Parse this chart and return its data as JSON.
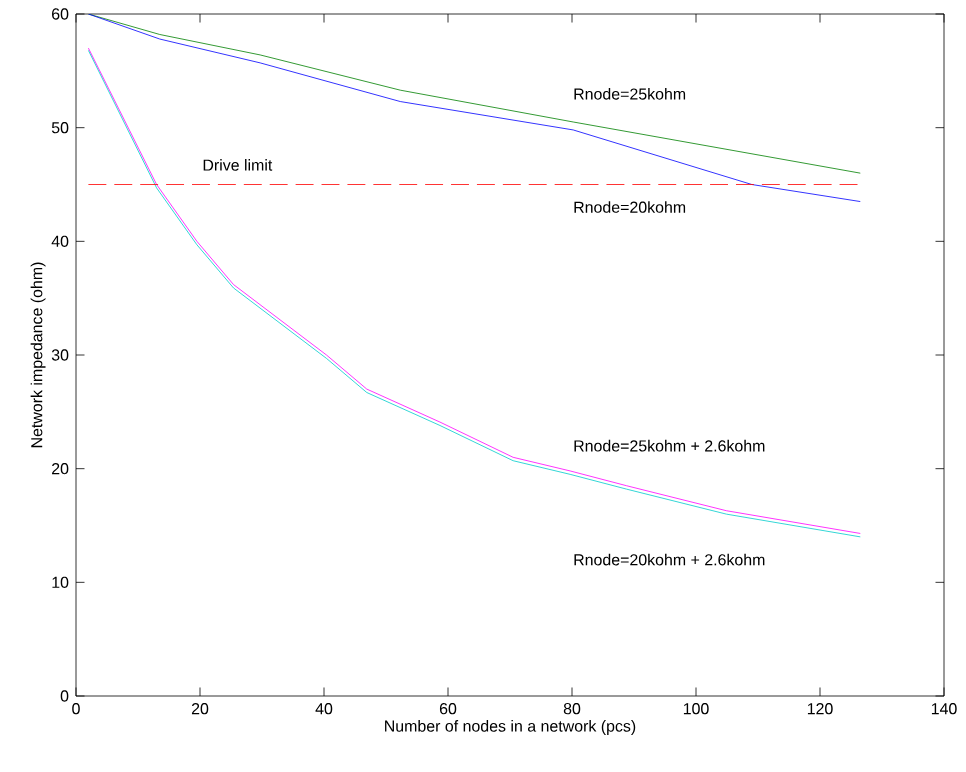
{
  "chart_data": {
    "type": "line",
    "xlabel": "Number of nodes in a network (pcs)",
    "ylabel": "Network impedance (ohm)",
    "xlim": [
      0,
      140
    ],
    "ylim": [
      0,
      60
    ],
    "xticks": [
      0,
      20,
      40,
      60,
      80,
      100,
      120,
      140
    ],
    "yticks": [
      0,
      10,
      20,
      30,
      40,
      50,
      60
    ],
    "grid": false,
    "marker": "none",
    "line_style": "solid",
    "series": [
      {
        "color": "#008000",
        "x": [
          2,
          13.5,
          29.7,
          52.3,
          80.2,
          126.5
        ],
        "values": [
          60,
          58.2,
          56.4,
          53.3,
          50.5,
          46.0
        ]
      },
      {
        "color": "#0000ff",
        "x": [
          2,
          13.5,
          29.7,
          52.3,
          80.2,
          109,
          126.5
        ],
        "values": [
          60,
          57.8,
          55.7,
          52.3,
          49.8,
          45,
          43.5
        ]
      },
      {
        "color": "#ff00ff",
        "x": [
          2,
          13,
          19.5,
          25.4,
          40.4,
          46.9,
          58.7,
          70.5,
          79.7,
          88.8,
          104.9,
          126.5
        ],
        "values": [
          57,
          45,
          40,
          36.2,
          30,
          27.0,
          24.1,
          21.0,
          19.8,
          18.5,
          16.3,
          14.3
        ]
      },
      {
        "color": "#00cccc",
        "x": [
          2,
          13,
          19.5,
          25.4,
          40.4,
          46.9,
          58.7,
          70.5,
          79.7,
          88.8,
          104.9,
          126.5
        ],
        "values": [
          56.8,
          44.7,
          39.7,
          35.9,
          29.7,
          26.7,
          23.8,
          20.7,
          19.5,
          18.2,
          16.0,
          14.0
        ]
      }
    ],
    "ref_lines": [
      {
        "axis": "y",
        "value": 45,
        "label": "Drive limit",
        "color": "#ff0000",
        "line_style": "dashed"
      }
    ],
    "annotations": [
      "Rnode=25kohm",
      "Rnode=20kohm",
      "Rnode=25kohm + 2.6kohm",
      "Rnode=20kohm + 2.6kohm"
    ]
  }
}
